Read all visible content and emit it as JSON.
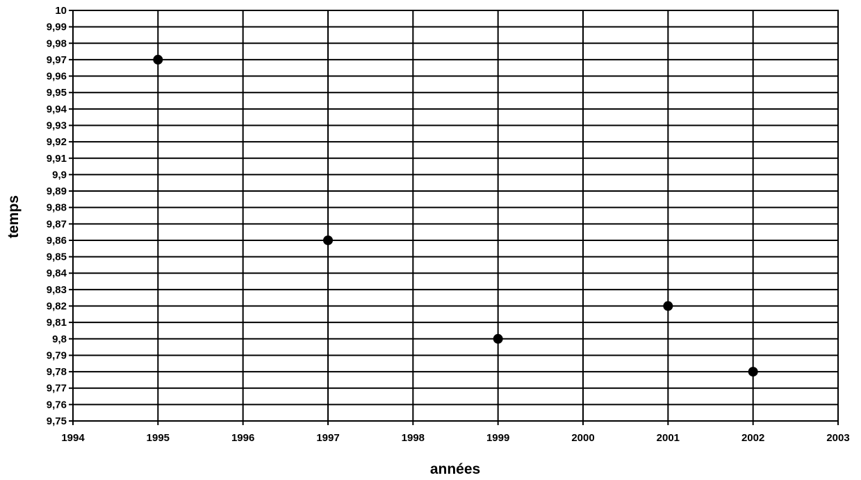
{
  "chart_data": {
    "type": "scatter",
    "title": "",
    "xlabel": "années",
    "ylabel": "temps",
    "xlim": [
      1994,
      2003
    ],
    "ylim": [
      9.75,
      10
    ],
    "x_ticks": [
      "1994",
      "1995",
      "1996",
      "1997",
      "1998",
      "1999",
      "2000",
      "2001",
      "2002",
      "2003"
    ],
    "y_ticks": [
      "9,75",
      "9,76",
      "9,77",
      "9,78",
      "9,79",
      "9,8",
      "9,81",
      "9,82",
      "9,83",
      "9,84",
      "9,85",
      "9,86",
      "9,87",
      "9,88",
      "9,89",
      "9,9",
      "9,91",
      "9,92",
      "9,93",
      "9,94",
      "9,95",
      "9,96",
      "9,97",
      "9,98",
      "9,99",
      "10"
    ],
    "grid": true,
    "legend": "none",
    "marker_color": "#000000",
    "series": [
      {
        "x": [
          1995,
          1997,
          1999,
          2001,
          2002
        ],
        "y": [
          9.97,
          9.86,
          9.8,
          9.82,
          9.78
        ]
      }
    ]
  }
}
